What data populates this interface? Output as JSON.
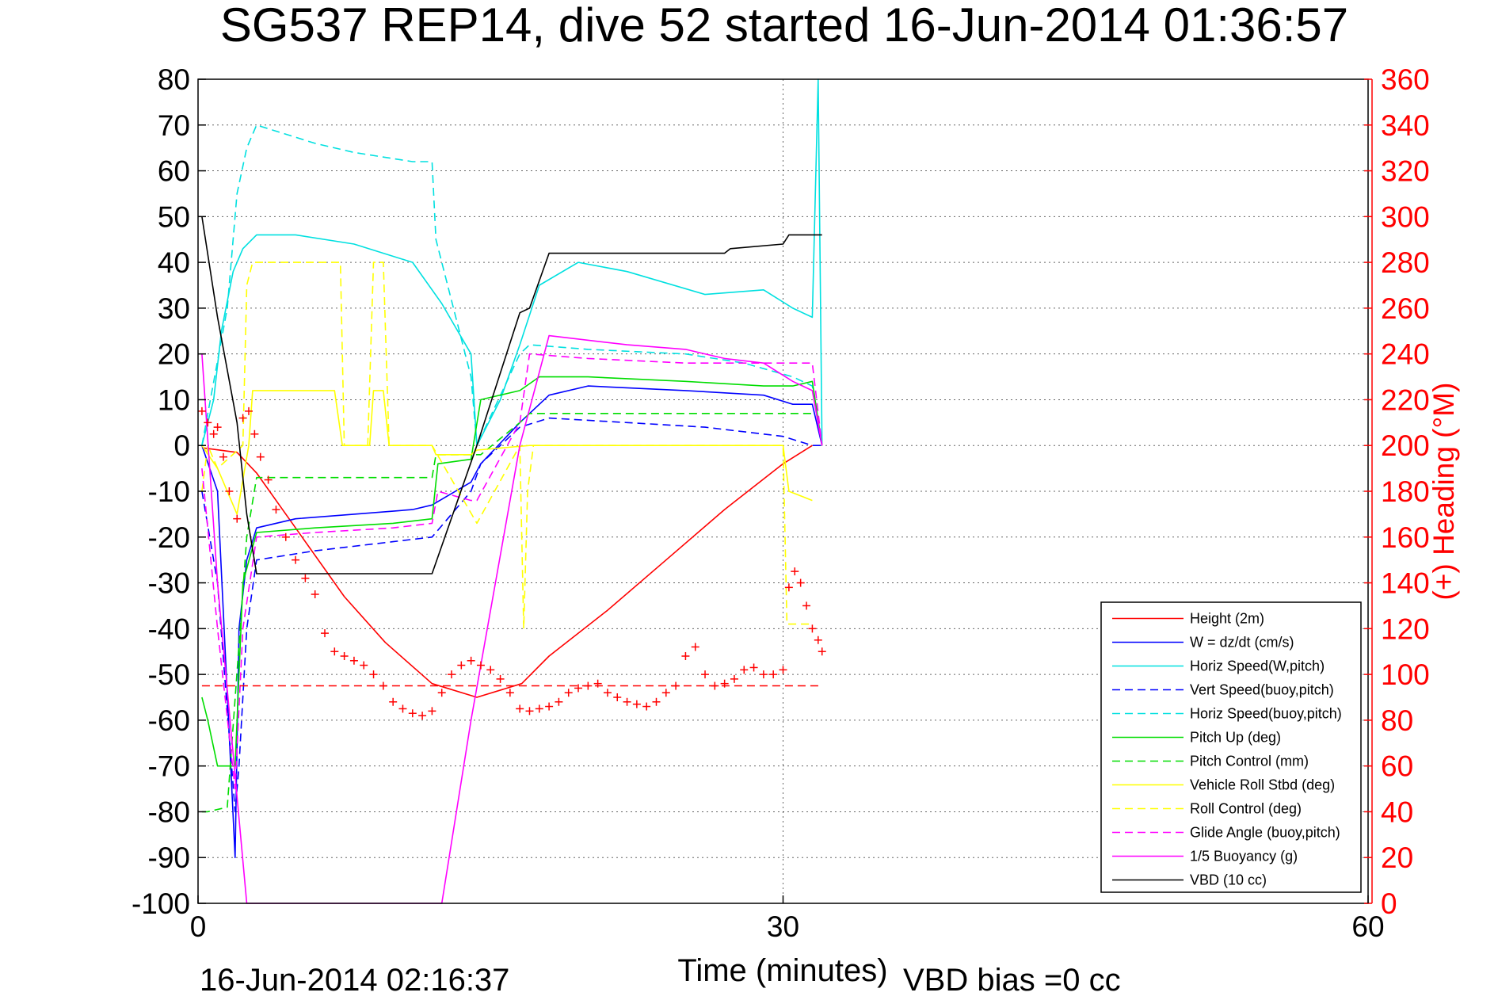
{
  "chart_data": {
    "type": "line",
    "title": "SG537 REP14, dive 52 started 16-Jun-2014 01:36:57",
    "xlabel": "Time (minutes)",
    "ylabel_right": "(+) Heading (°M)",
    "xlim": [
      0,
      60
    ],
    "ylim": [
      -100,
      80
    ],
    "ylim_right": [
      0,
      360
    ],
    "x_ticks": [
      0,
      30,
      60
    ],
    "y_ticks": [
      80,
      70,
      60,
      50,
      40,
      30,
      20,
      10,
      0,
      -10,
      -20,
      -30,
      -40,
      -50,
      -60,
      -70,
      -80,
      -90,
      -100
    ],
    "y_ticks_right": [
      360,
      340,
      320,
      300,
      280,
      260,
      240,
      220,
      200,
      180,
      160,
      140,
      120,
      100,
      80,
      60,
      40,
      20,
      0
    ],
    "grid": true,
    "footer_left": "16-Jun-2014 02:16:37",
    "footer_right": "VBD bias =0 cc",
    "legend_position": "lower-right",
    "series": [
      {
        "name": "Height (2m)",
        "color": "#ff0000",
        "style": "solid",
        "x": [
          0.2,
          2.0,
          3.0,
          5.0,
          7.5,
          9.6,
          12.0,
          14.3,
          16.6,
          18.0,
          21.0,
          24.0,
          27.0,
          30.0,
          31.5
        ],
        "y": [
          -0.5,
          -1.5,
          -6,
          -18,
          -33,
          -43,
          -52,
          -55,
          -52,
          -46,
          -36,
          -25,
          -14,
          -4,
          0
        ]
      },
      {
        "name": "W = dz/dt (cm/s)",
        "color": "#0000ff",
        "style": "solid",
        "x": [
          0.2,
          1.0,
          1.9,
          2.1,
          2.5,
          3.0,
          5.0,
          8.0,
          11.0,
          12.0,
          14.0,
          14.5,
          16.5,
          17.0,
          18.0,
          20.0,
          25.0,
          29.0,
          30.5,
          31.5,
          32.0
        ],
        "y": [
          0,
          -10,
          -90,
          -40,
          -25,
          -18,
          -16,
          -15,
          -14,
          -13,
          -8,
          -4,
          5,
          7,
          11,
          13,
          12,
          11,
          9,
          9,
          0
        ]
      },
      {
        "name": "Horiz Speed(W,pitch)",
        "color": "#00e0e0",
        "style": "solid",
        "x": [
          0.2,
          0.8,
          1.2,
          1.8,
          2.3,
          3.0,
          5.0,
          8.0,
          11.0,
          12.5,
          14.0,
          14.3,
          15.5,
          16.5,
          17.5,
          19.5,
          22.0,
          26.0,
          29.0,
          30.5,
          31.5,
          31.8,
          32.0
        ],
        "y": [
          0,
          10,
          25,
          38,
          43,
          46,
          46,
          44,
          40,
          31,
          20,
          0,
          10,
          22,
          35,
          40,
          38,
          33,
          34,
          30,
          28,
          80,
          0
        ]
      },
      {
        "name": "Vert Speed(buoy,pitch)",
        "color": "#0000ff",
        "style": "dashed",
        "x": [
          0.2,
          1.0,
          1.9,
          2.1,
          2.5,
          3.0,
          6.0,
          10.0,
          12.0,
          14.0,
          14.5,
          16.0,
          16.5,
          18.0,
          22.0,
          26.0,
          30.0,
          31.5,
          32.0
        ],
        "y": [
          -10,
          -30,
          -80,
          -70,
          -40,
          -25,
          -23,
          -21,
          -20,
          -10,
          -4,
          2,
          4,
          6,
          5,
          4,
          2,
          0,
          0
        ]
      },
      {
        "name": "Horiz Speed(buoy,pitch)",
        "color": "#00e0e0",
        "style": "dashed",
        "x": [
          0.2,
          1.5,
          2.0,
          2.5,
          3.0,
          6.0,
          8.0,
          11.0,
          12.0,
          12.2,
          14.0,
          14.3,
          16.5,
          17.0,
          20.0,
          25.0,
          28.0,
          30.5,
          31.5,
          32.0
        ],
        "y": [
          0,
          30,
          55,
          65,
          70,
          66,
          64,
          62,
          62,
          45,
          15,
          0,
          20,
          22,
          21,
          20,
          18,
          15,
          13,
          0
        ]
      },
      {
        "name": "Pitch Up (deg)",
        "color": "#00dd00",
        "style": "solid",
        "x": [
          0.2,
          0.5,
          1.0,
          1.9,
          2.3,
          3.0,
          6.0,
          10.0,
          12.0,
          12.3,
          14.0,
          14.5,
          16.5,
          17.5,
          20.0,
          25.0,
          29.0,
          30.5,
          31.5,
          32.0
        ],
        "y": [
          -55,
          -60,
          -70,
          -70,
          -30,
          -19,
          -18,
          -17,
          -16,
          -4,
          -3,
          10,
          12,
          15,
          15,
          14,
          13,
          13,
          14,
          0
        ]
      },
      {
        "name": "Pitch Control (mm)",
        "color": "#00dd00",
        "style": "dashed",
        "x": [
          0.2,
          0.5,
          1.5,
          2.5,
          3.0,
          6.0,
          10.0,
          12.0,
          12.2,
          14.5,
          16.5,
          17.0,
          31.5
        ],
        "y": [
          -80,
          -80,
          -79,
          -20,
          -7,
          -7,
          -7,
          -7,
          -2,
          -2,
          5,
          7,
          7
        ]
      },
      {
        "name": "Vehicle Roll Stbd (deg)",
        "color": "#ffff00",
        "style": "solid",
        "x": [
          0.2,
          1.0,
          2.0,
          2.6,
          2.8,
          5.0,
          7.0,
          7.4,
          7.6,
          8.8,
          9.0,
          9.5,
          9.8,
          11.0,
          12.0,
          12.2,
          14.0,
          14.3,
          17.0,
          24.0,
          30.0,
          30.3,
          31.5
        ],
        "y": [
          0,
          -5,
          -15,
          0,
          12,
          12,
          12,
          0,
          0,
          0,
          12,
          12,
          0,
          0,
          0,
          -2,
          -2,
          -1,
          0,
          0,
          0,
          -10,
          -12
        ]
      },
      {
        "name": "Roll Control (deg)",
        "color": "#ffff00",
        "style": "dashed",
        "x": [
          0.2,
          0.5,
          1.0,
          2.3,
          2.5,
          2.8,
          5.0,
          7.3,
          7.5,
          8.7,
          9.0,
          9.5,
          9.8,
          12.0,
          14.3,
          16.5,
          16.7,
          16.9,
          17.2,
          30.0,
          30.2,
          31.5
        ],
        "y": [
          -10,
          0,
          -5,
          0,
          35,
          40,
          40,
          40,
          0,
          0,
          40,
          40,
          0,
          0,
          -17,
          0,
          -40,
          -10,
          0,
          0,
          -39,
          -39
        ]
      },
      {
        "name": "Glide Angle (buoy,pitch)",
        "color": "#ff00ff",
        "style": "dashed",
        "x": [
          0.2,
          1.0,
          1.9,
          2.3,
          3.0,
          6.0,
          10.0,
          12.0,
          12.3,
          14.0,
          14.3,
          16.5,
          17.0,
          20.0,
          25.0,
          30.0,
          31.5,
          32.0
        ],
        "y": [
          -5,
          -40,
          -75,
          -40,
          -20,
          -19,
          -18,
          -17,
          -10,
          -12,
          -12,
          5,
          20,
          19,
          18,
          18,
          18,
          0
        ]
      },
      {
        "name": "1/5 Buoyancy (g)",
        "color": "#ff00ff",
        "style": "solid",
        "x": [
          0.2,
          1.0,
          2.5,
          12.5,
          14.0,
          16.5,
          18.0,
          22.0,
          25.0,
          27.0,
          29.0,
          30.5,
          31.5,
          32.0
        ],
        "y": [
          20,
          -30,
          -100,
          -100,
          -60,
          0,
          24,
          22,
          21,
          19,
          18,
          14,
          12,
          0
        ]
      },
      {
        "name": "VBD (10 cc)",
        "color": "#000000",
        "style": "solid",
        "x": [
          0.2,
          1.0,
          2.0,
          2.5,
          3.0,
          12.0,
          14.3,
          16.5,
          17.0,
          18.0,
          27.0,
          27.3,
          30.0,
          30.3,
          32.0
        ],
        "y": [
          50,
          28,
          5,
          -15,
          -28,
          -28,
          0,
          29,
          30,
          42,
          42,
          43,
          44,
          46,
          46
        ]
      }
    ],
    "heading": {
      "color": "#ff0000",
      "marker": "+",
      "x": [
        0.2,
        0.5,
        0.8,
        1.0,
        1.3,
        1.6,
        2.0,
        2.3,
        2.6,
        2.9,
        3.2,
        3.6,
        4.0,
        4.5,
        5.0,
        5.5,
        6.0,
        6.5,
        7.0,
        7.5,
        8.0,
        8.5,
        9.0,
        9.5,
        10.0,
        10.5,
        11.0,
        11.5,
        12.0,
        12.5,
        13.0,
        13.5,
        14.0,
        14.5,
        15.0,
        15.5,
        16.0,
        16.5,
        17.0,
        17.5,
        18.0,
        18.5,
        19.0,
        19.5,
        20.0,
        20.5,
        21.0,
        21.5,
        22.0,
        22.5,
        23.0,
        23.5,
        24.0,
        24.5,
        25.0,
        25.5,
        26.0,
        26.5,
        27.0,
        27.5,
        28.0,
        28.5,
        29.0,
        29.5,
        30.0,
        30.3,
        30.6,
        30.9,
        31.2,
        31.5,
        31.8,
        32.0
      ],
      "y": [
        215,
        210,
        205,
        208,
        195,
        180,
        168,
        212,
        215,
        205,
        195,
        185,
        172,
        160,
        150,
        142,
        135,
        118,
        110,
        108,
        106,
        104,
        100,
        95,
        88,
        85,
        83,
        82,
        84,
        92,
        100,
        104,
        106,
        104,
        102,
        98,
        92,
        85,
        84,
        85,
        86,
        88,
        92,
        94,
        95,
        96,
        92,
        90,
        88,
        87,
        86,
        88,
        92,
        95,
        108,
        112,
        100,
        95,
        96,
        98,
        102,
        103,
        100,
        100,
        102,
        138,
        145,
        140,
        130,
        120,
        115,
        110
      ]
    },
    "heading_reference_value": 95
  }
}
